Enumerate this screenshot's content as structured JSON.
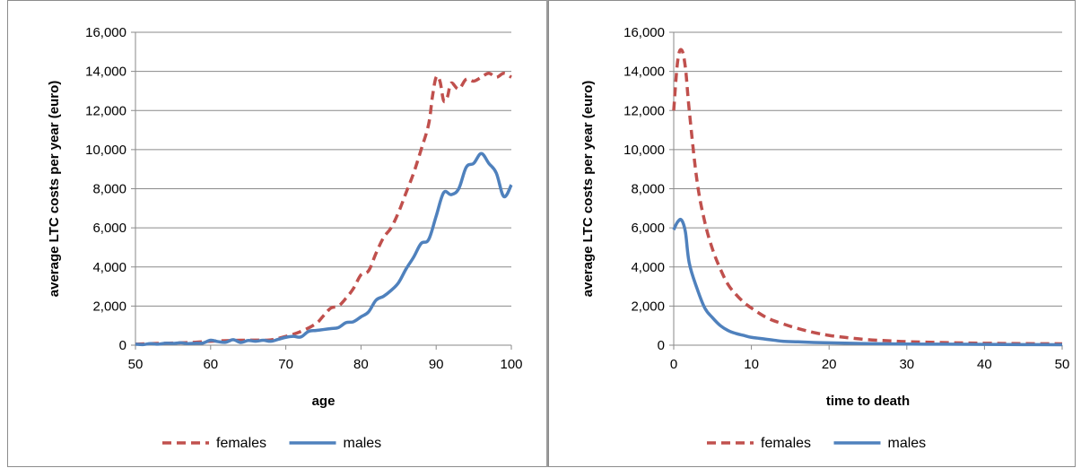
{
  "chart_data": [
    {
      "type": "line",
      "title": "",
      "xlabel": "age",
      "ylabel": "average LTC costs per year (euro)",
      "xlim": [
        50,
        100
      ],
      "ylim": [
        0,
        16000
      ],
      "xticks": [
        "50",
        "60",
        "70",
        "80",
        "90",
        "100"
      ],
      "xtick_values": [
        50,
        60,
        70,
        80,
        90,
        100
      ],
      "yticks": [
        "0",
        "2,000",
        "4,000",
        "6,000",
        "8,000",
        "10,000",
        "12,000",
        "14,000",
        "16,000"
      ],
      "ytick_values": [
        0,
        2000,
        4000,
        6000,
        8000,
        10000,
        12000,
        14000,
        16000
      ],
      "grid": "horizontal",
      "legend_position": "bottom",
      "series": [
        {
          "name": "females",
          "color": "#C0504D",
          "style": "dashed",
          "x": [
            50,
            52,
            54,
            56,
            58,
            60,
            62,
            64,
            66,
            68,
            70,
            72,
            74,
            75,
            76,
            77,
            78,
            79,
            80,
            81,
            82,
            83,
            84,
            85,
            86,
            87,
            88,
            89,
            89.5,
            90,
            90.5,
            91,
            91.5,
            92,
            93,
            94,
            95,
            96,
            97,
            98,
            99,
            100
          ],
          "y": [
            50,
            80,
            100,
            120,
            150,
            200,
            230,
            250,
            260,
            270,
            450,
            700,
            1100,
            1500,
            1900,
            2000,
            2400,
            2900,
            3600,
            3800,
            4700,
            5500,
            6000,
            6800,
            7800,
            8800,
            10000,
            11300,
            12700,
            13700,
            13500,
            12500,
            12700,
            13400,
            13100,
            13600,
            13500,
            13700,
            13900,
            13700,
            13900,
            13700
          ]
        },
        {
          "name": "males",
          "color": "#4F81BD",
          "style": "solid",
          "x": [
            50,
            51,
            52,
            53,
            54,
            55,
            56,
            57,
            58,
            59,
            60,
            61,
            62,
            63,
            64,
            65,
            66,
            67,
            68,
            69,
            70,
            71,
            72,
            73,
            74,
            75,
            76,
            77,
            78,
            79,
            80,
            81,
            82,
            83,
            84,
            85,
            86,
            87,
            88,
            89,
            90,
            91,
            92,
            93,
            94,
            95,
            96,
            97,
            98,
            99,
            100
          ],
          "y": [
            50,
            30,
            80,
            50,
            100,
            90,
            120,
            80,
            100,
            110,
            250,
            180,
            150,
            280,
            140,
            240,
            200,
            250,
            200,
            300,
            400,
            450,
            420,
            700,
            750,
            800,
            850,
            900,
            1150,
            1200,
            1450,
            1700,
            2300,
            2500,
            2800,
            3200,
            3900,
            4500,
            5200,
            5400,
            6600,
            7800,
            7700,
            8000,
            9100,
            9300,
            9800,
            9300,
            8800,
            7600,
            8200
          ]
        }
      ]
    },
    {
      "type": "line",
      "title": "",
      "xlabel": "time to death",
      "ylabel": "average LTC costs per year (euro)",
      "xlim": [
        0,
        50
      ],
      "ylim": [
        0,
        16000
      ],
      "xticks": [
        "0",
        "10",
        "20",
        "30",
        "40",
        "50"
      ],
      "xtick_values": [
        0,
        10,
        20,
        30,
        40,
        50
      ],
      "yticks": [
        "0",
        "2,000",
        "4,000",
        "6,000",
        "8,000",
        "10,000",
        "12,000",
        "14,000",
        "16,000"
      ],
      "ytick_values": [
        0,
        2000,
        4000,
        6000,
        8000,
        10000,
        12000,
        14000,
        16000
      ],
      "grid": "horizontal",
      "legend_position": "bottom",
      "series": [
        {
          "name": "females",
          "color": "#C0504D",
          "style": "dashed",
          "x": [
            0,
            0.5,
            1,
            1.5,
            2,
            3,
            4,
            5,
            6,
            7,
            8,
            9,
            10,
            12,
            14,
            16,
            18,
            20,
            22,
            25,
            28,
            30,
            35,
            40,
            45,
            50
          ],
          "y": [
            12000,
            14500,
            15100,
            14200,
            12000,
            8400,
            6300,
            4900,
            3900,
            3100,
            2600,
            2200,
            1900,
            1400,
            1100,
            850,
            650,
            500,
            400,
            280,
            220,
            180,
            130,
            100,
            80,
            70
          ],
          "points": "clockwise"
        },
        {
          "name": "males",
          "color": "#4F81BD",
          "style": "solid",
          "x": [
            0,
            0.5,
            1,
            1.5,
            2,
            3,
            4,
            5,
            6,
            7,
            8,
            9,
            10,
            11,
            12,
            13,
            14,
            16,
            18,
            20,
            25,
            30,
            35,
            40,
            45,
            50
          ],
          "y": [
            5900,
            6300,
            6400,
            5800,
            4200,
            2900,
            1900,
            1400,
            1000,
            750,
            600,
            500,
            400,
            350,
            300,
            250,
            200,
            170,
            140,
            120,
            80,
            60,
            50,
            40,
            30,
            20
          ]
        }
      ]
    }
  ]
}
